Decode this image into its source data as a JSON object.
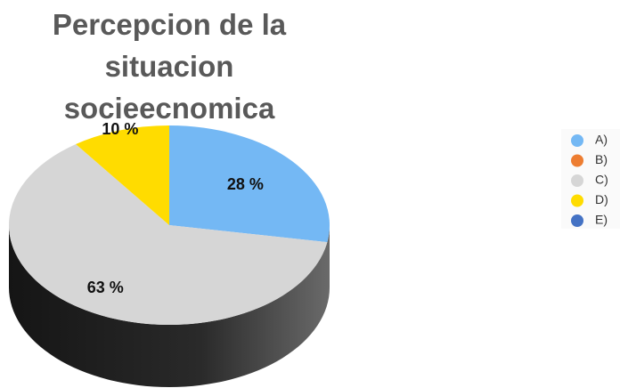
{
  "chart_data": {
    "type": "pie",
    "title": "Percepcion de la situacion socieecnomica",
    "series": [
      {
        "name": "A)",
        "color": "#74b8f4",
        "values": [
          28
        ],
        "value_labels": [
          "28 %"
        ]
      },
      {
        "name": "B)",
        "color": "#ed7d31",
        "values": [
          0
        ],
        "value_labels": [
          null
        ]
      },
      {
        "name": "C)",
        "color": "#d6d6d6",
        "values": [
          63
        ],
        "value_labels": [
          "63 %"
        ]
      },
      {
        "name": "D)",
        "color": "#ffdc00",
        "values": [
          10
        ],
        "value_labels": [
          "10 %"
        ]
      },
      {
        "name": "E)",
        "color": "#4472c4",
        "values": [
          0
        ],
        "value_labels": [
          null
        ]
      }
    ],
    "legend": "right"
  }
}
